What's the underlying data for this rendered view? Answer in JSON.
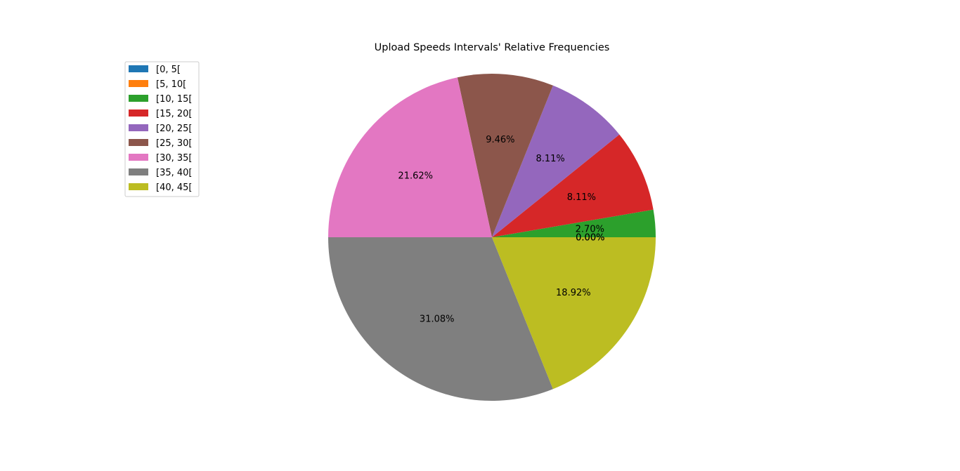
{
  "chart_data": {
    "type": "pie",
    "title": "Upload Speeds Intervals' Relative Frequencies",
    "categories": [
      "[0, 5[",
      "[5, 10[",
      "[10, 15[",
      "[15, 20[",
      "[20, 25[",
      "[25, 30[",
      "[30, 35[",
      "[35, 40[",
      "[40, 45["
    ],
    "values": [
      0.0,
      0.0,
      2.7,
      8.11,
      8.11,
      9.46,
      21.62,
      31.08,
      18.92
    ],
    "labels": [
      "0.00%",
      "0.00%",
      "2.70%",
      "8.11%",
      "8.11%",
      "9.46%",
      "21.62%",
      "31.08%",
      "18.92%"
    ],
    "colors": [
      "#1f77b4",
      "#ff7f0e",
      "#2ca02c",
      "#d62728",
      "#9467bd",
      "#8c564b",
      "#e377c2",
      "#7f7f7f",
      "#bcbd22"
    ],
    "start_angle_deg": 0,
    "direction": "counterclockwise",
    "legend_position": "upper-left"
  }
}
